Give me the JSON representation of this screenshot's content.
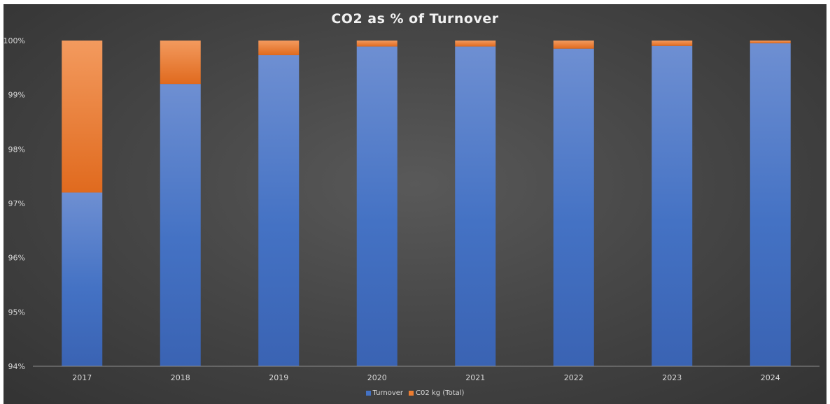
{
  "colors": {
    "turnover": "#4472C4",
    "co2": "#ED7D31"
  },
  "chart_data": {
    "type": "bar",
    "stacked": "percent",
    "title": "CO2 as % of Turnover",
    "xlabel": "",
    "ylabel": "",
    "categories": [
      "2017",
      "2018",
      "2019",
      "2020",
      "2021",
      "2022",
      "2023",
      "2024"
    ],
    "series": [
      {
        "name": "Turnover",
        "values": [
          97.2,
          99.2,
          99.73,
          99.89,
          99.89,
          99.85,
          99.9,
          99.95
        ]
      },
      {
        "name": "C02 kg (Total)",
        "values": [
          2.8,
          0.8,
          0.27,
          0.11,
          0.11,
          0.15,
          0.1,
          0.05
        ]
      }
    ],
    "ylim": [
      94,
      100
    ],
    "yticks": [
      "94%",
      "95%",
      "96%",
      "97%",
      "98%",
      "99%",
      "100%"
    ],
    "grid": false,
    "legend": "bottom"
  }
}
